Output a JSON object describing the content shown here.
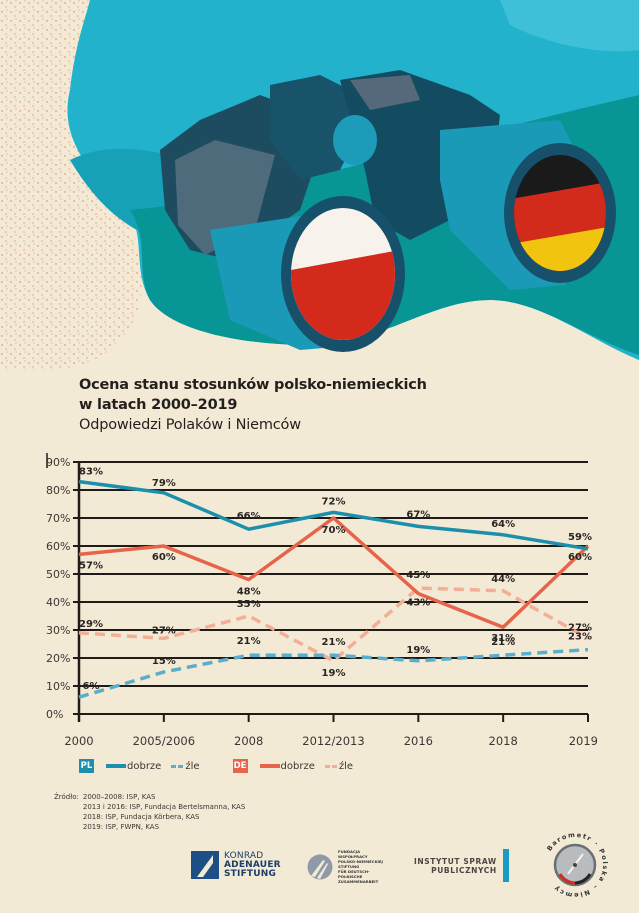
{
  "title": {
    "line1": "Ocena stanu stosunków polsko-niemieckich",
    "line2": "w latach 2000–2019",
    "subtitle": "Odpowiedzi Polaków i Niemców"
  },
  "colors": {
    "background": "#f3ead6",
    "pl_dobrze": "#1c8fad",
    "pl_zle": "#5aaecb",
    "de_dobrze": "#e5644a",
    "de_zle": "#f2ae97",
    "grid": "#1f1b19"
  },
  "illustration": {
    "description": "binoculars with Polish and German flags in the lenses",
    "icons": [
      "binoculars-icon",
      "polish-flag-icon",
      "german-flag-icon"
    ]
  },
  "chart_data": {
    "type": "line",
    "title": "Ocena stanu stosunków polsko-niemieckich w latach 2000–2019",
    "subtitle": "Odpowiedzi Polaków i Niemców",
    "xlabel": "",
    "ylabel": "",
    "categories": [
      "2000",
      "2005/2006",
      "2008",
      "2012/2013",
      "2016",
      "2018",
      "2019"
    ],
    "ylim": [
      0,
      90
    ],
    "yticks": [
      "0%",
      "10%",
      "20%",
      "30%",
      "40%",
      "50%",
      "60%",
      "70%",
      "80%",
      "90%"
    ],
    "grid": true,
    "legend_position": "bottom",
    "series": [
      {
        "name": "PL dobrze",
        "group": "PL",
        "label": "dobrze",
        "style": "solid",
        "color": "#1c8fad",
        "values": [
          83,
          79,
          66,
          72,
          67,
          64,
          59
        ],
        "labels": [
          "83%",
          "79%",
          "66%",
          "72%",
          "67%",
          "64%",
          "59%"
        ]
      },
      {
        "name": "PL źle",
        "group": "PL",
        "label": "źle",
        "style": "dashed",
        "color": "#5aaecb",
        "values": [
          6,
          15,
          21,
          21,
          19,
          21,
          23
        ],
        "labels": [
          "6%",
          "15%",
          "21%",
          "21%",
          "19%",
          "21%",
          "23%"
        ]
      },
      {
        "name": "DE dobrze",
        "group": "DE",
        "label": "dobrze",
        "style": "solid",
        "color": "#e5644a",
        "values": [
          57,
          60,
          48,
          70,
          43,
          31,
          60
        ],
        "labels": [
          "57%",
          "60%",
          "48%",
          "70%",
          "43%",
          "31%",
          "60%"
        ]
      },
      {
        "name": "DE źle",
        "group": "DE",
        "label": "źle",
        "style": "dashed",
        "color": "#f2ae97",
        "values": [
          29,
          27,
          35,
          19,
          45,
          44,
          27
        ],
        "labels": [
          "29%",
          "27%",
          "35%",
          "19%",
          "45%",
          "44%",
          "27%"
        ]
      }
    ]
  },
  "legend": {
    "pl_badge": "PL",
    "de_badge": "DE",
    "dobrze": "dobrze",
    "zle": "źle"
  },
  "sources": {
    "label": "Źródło:",
    "lines": [
      "2000–2008: ISP, KAS",
      "2013 i 2016: ISP, Fundacja Bertelsmanna, KAS",
      "2018: ISP, Fundacja Körbera, KAS",
      "2019: ISP, FWPN, KAS"
    ]
  },
  "logos": {
    "kas": [
      "KONRAD",
      "ADENAUER",
      "STIFTUNG"
    ],
    "fwpn": [
      "FUNDACJA WSPÓŁPRACY",
      "POLSKO-NIEMIECKIEJ",
      "STIFTUNG",
      "FÜR DEUTSCH-POLNISCHE",
      "ZUSAMMENARBEIT"
    ],
    "isp": [
      "INSTYTUT SPRAW",
      "PUBLICZNYCH"
    ],
    "barometr": "Barometr · Polska – Niemcy"
  }
}
